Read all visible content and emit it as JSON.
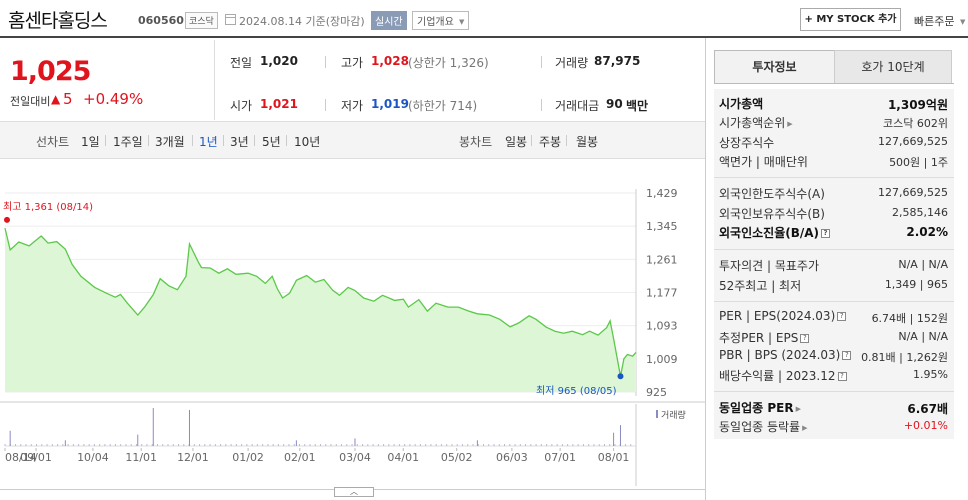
{
  "header": {
    "company_name": "홈센타홀딩스",
    "code": "060560",
    "market_tag": "코스닥",
    "date": "2024.08.14",
    "date_suffix": "기준(장마감)",
    "realtime_tag": "실시간",
    "info_tag": "기업개요",
    "mystock_label": "+ MY STOCK 추가",
    "quick_order_label": "빠른주문"
  },
  "quote": {
    "price": "1,025",
    "change_label": "전일대비",
    "change_value": "5",
    "change_pct": "+0.49%",
    "stats": {
      "prev_close_label": "전일",
      "prev_close": "1,020",
      "high_label": "고가",
      "high": "1,028",
      "upper_limit": "(상한가 1,326)",
      "volume_label": "거래량",
      "volume": "87,975",
      "open_label": "시가",
      "open": "1,021",
      "low_label": "저가",
      "low": "1,019",
      "lower_limit": "(하한가 714)",
      "amount_label": "거래대금",
      "amount": "90",
      "amount_unit": "백만"
    }
  },
  "range_bar": {
    "line_chart_label": "선차트",
    "ranges": [
      "1일",
      "1주일",
      "3개월",
      "1년",
      "3년",
      "5년",
      "10년"
    ],
    "selected": "1년",
    "candle_chart_label": "봉차트",
    "candles": [
      "일봉",
      "주봉",
      "월봉"
    ]
  },
  "chart_data": {
    "type": "area",
    "y_ticks": [
      "1,429",
      "1,345",
      "1,261",
      "1,177",
      "1,093",
      "1,009",
      "925"
    ],
    "ylim": [
      925,
      1429
    ],
    "x_ticks": [
      "08/14",
      "09/01",
      "10/04",
      "11/01",
      "12/01",
      "01/02",
      "02/01",
      "03/04",
      "04/01",
      "05/02",
      "06/03",
      "07/01",
      "08/01"
    ],
    "max_annotation": "최고 1,361 (08/14)",
    "min_annotation": "최저 965 (08/05)",
    "volume_legend": "거래량",
    "price_series": [
      {
        "date": "2023-08-14",
        "value": 1340
      },
      {
        "date": "2023-08-17",
        "value": 1285
      },
      {
        "date": "2023-08-22",
        "value": 1305
      },
      {
        "date": "2023-08-28",
        "value": 1295
      },
      {
        "date": "2023-09-04",
        "value": 1320
      },
      {
        "date": "2023-09-08",
        "value": 1302
      },
      {
        "date": "2023-09-13",
        "value": 1306
      },
      {
        "date": "2023-09-18",
        "value": 1287
      },
      {
        "date": "2023-09-22",
        "value": 1248
      },
      {
        "date": "2023-09-27",
        "value": 1218
      },
      {
        "date": "2023-10-05",
        "value": 1190
      },
      {
        "date": "2023-10-12",
        "value": 1175
      },
      {
        "date": "2023-10-17",
        "value": 1165
      },
      {
        "date": "2023-10-20",
        "value": 1172
      },
      {
        "date": "2023-10-24",
        "value": 1150
      },
      {
        "date": "2023-10-30",
        "value": 1120
      },
      {
        "date": "2023-11-03",
        "value": 1140
      },
      {
        "date": "2023-11-08",
        "value": 1172
      },
      {
        "date": "2023-11-12",
        "value": 1212
      },
      {
        "date": "2023-11-17",
        "value": 1194
      },
      {
        "date": "2023-11-22",
        "value": 1184
      },
      {
        "date": "2023-11-27",
        "value": 1218
      },
      {
        "date": "2023-11-29",
        "value": 1300
      },
      {
        "date": "2023-12-04",
        "value": 1255
      },
      {
        "date": "2023-12-06",
        "value": 1240
      },
      {
        "date": "2023-12-11",
        "value": 1239
      },
      {
        "date": "2023-12-16",
        "value": 1226
      },
      {
        "date": "2023-12-21",
        "value": 1237
      },
      {
        "date": "2023-12-26",
        "value": 1223
      },
      {
        "date": "2024-01-02",
        "value": 1226
      },
      {
        "date": "2024-01-07",
        "value": 1218
      },
      {
        "date": "2024-01-12",
        "value": 1200
      },
      {
        "date": "2024-01-16",
        "value": 1218
      },
      {
        "date": "2024-01-19",
        "value": 1186
      },
      {
        "date": "2024-01-22",
        "value": 1163
      },
      {
        "date": "2024-01-26",
        "value": 1175
      },
      {
        "date": "2024-01-30",
        "value": 1208
      },
      {
        "date": "2024-02-05",
        "value": 1220
      },
      {
        "date": "2024-02-10",
        "value": 1203
      },
      {
        "date": "2024-02-15",
        "value": 1210
      },
      {
        "date": "2024-02-20",
        "value": 1183
      },
      {
        "date": "2024-02-24",
        "value": 1170
      },
      {
        "date": "2024-02-29",
        "value": 1190
      },
      {
        "date": "2024-03-04",
        "value": 1182
      },
      {
        "date": "2024-03-09",
        "value": 1163
      },
      {
        "date": "2024-03-15",
        "value": 1155
      },
      {
        "date": "2024-03-20",
        "value": 1170
      },
      {
        "date": "2024-03-27",
        "value": 1157
      },
      {
        "date": "2024-04-01",
        "value": 1160
      },
      {
        "date": "2024-04-04",
        "value": 1140
      },
      {
        "date": "2024-04-10",
        "value": 1159
      },
      {
        "date": "2024-04-15",
        "value": 1130
      },
      {
        "date": "2024-04-20",
        "value": 1150
      },
      {
        "date": "2024-04-27",
        "value": 1140
      },
      {
        "date": "2024-05-03",
        "value": 1140
      },
      {
        "date": "2024-05-09",
        "value": 1130
      },
      {
        "date": "2024-05-14",
        "value": 1123
      },
      {
        "date": "2024-05-21",
        "value": 1120
      },
      {
        "date": "2024-05-27",
        "value": 1109
      },
      {
        "date": "2024-06-02",
        "value": 1090
      },
      {
        "date": "2024-06-07",
        "value": 1100
      },
      {
        "date": "2024-06-13",
        "value": 1118
      },
      {
        "date": "2024-06-17",
        "value": 1109
      },
      {
        "date": "2024-06-23",
        "value": 1089
      },
      {
        "date": "2024-06-28",
        "value": 1079
      },
      {
        "date": "2024-07-03",
        "value": 1074
      },
      {
        "date": "2024-07-08",
        "value": 1079
      },
      {
        "date": "2024-07-14",
        "value": 1070
      },
      {
        "date": "2024-07-18",
        "value": 1079
      },
      {
        "date": "2024-07-23",
        "value": 1069
      },
      {
        "date": "2024-07-28",
        "value": 1088
      },
      {
        "date": "2024-07-30",
        "value": 1105
      },
      {
        "date": "2024-08-01",
        "value": 1060
      },
      {
        "date": "2024-08-05",
        "value": 965
      },
      {
        "date": "2024-08-07",
        "value": 1009
      },
      {
        "date": "2024-08-09",
        "value": 1020
      },
      {
        "date": "2024-08-12",
        "value": 1016
      },
      {
        "date": "2024-08-14",
        "value": 1025
      }
    ],
    "volume_spikes": [
      {
        "date": "2023-08-17",
        "level": 0.4
      },
      {
        "date": "2023-09-18",
        "level": 0.15
      },
      {
        "date": "2023-10-30",
        "level": 0.3
      },
      {
        "date": "2023-11-08",
        "level": 1.0
      },
      {
        "date": "2023-11-29",
        "level": 0.95
      },
      {
        "date": "2024-01-30",
        "level": 0.15
      },
      {
        "date": "2024-03-04",
        "level": 0.2
      },
      {
        "date": "2024-05-14",
        "level": 0.15
      },
      {
        "date": "2024-08-01",
        "level": 0.35
      },
      {
        "date": "2024-08-05",
        "level": 0.55
      }
    ]
  },
  "right_panel": {
    "tabs": [
      "투자정보",
      "호가 10단계"
    ],
    "rows": [
      {
        "label": "시가총액",
        "value": "1,309억원",
        "bold": true
      },
      {
        "label": "시가총액순위",
        "value": "코스닥 602위",
        "arrow": true
      },
      {
        "label": "상장주식수",
        "value": "127,669,525"
      },
      {
        "label": "액면가 | 매매단위",
        "value": "500원 | 1주"
      },
      {
        "label": "외국인한도주식수(A)",
        "value": "127,669,525"
      },
      {
        "label": "외국인보유주식수(B)",
        "value": "2,585,146"
      },
      {
        "label": "외국인소진율(B/A)",
        "value": "2.02%",
        "bold": true,
        "q": true
      },
      {
        "label": "투자의견 | 목표주가",
        "value": "N/A | N/A"
      },
      {
        "label": "52주최고 | 최저",
        "value": "1,349 | 965"
      },
      {
        "label": "PER | EPS(2024.03)",
        "value": "6.74배 | 152원",
        "q": true
      },
      {
        "label": "추정PER | EPS",
        "value": "N/A | N/A",
        "q": true
      },
      {
        "label": "PBR | BPS (2024.03)",
        "value": "0.81배 | 1,262원",
        "q": true
      },
      {
        "label": "배당수익률 | 2023.12",
        "value": "1.95%",
        "q": true
      },
      {
        "label": "동일업종 PER",
        "value": "6.67배",
        "bold": true,
        "arrow": true
      },
      {
        "label": "동일업종 등락률",
        "value": "+0.01%",
        "arrow": true,
        "red": true
      }
    ]
  },
  "colors": {
    "up": "#e0141d",
    "down": "#1a56c4",
    "line": "#5cc84a",
    "area_fill": "#dcf6d6"
  }
}
